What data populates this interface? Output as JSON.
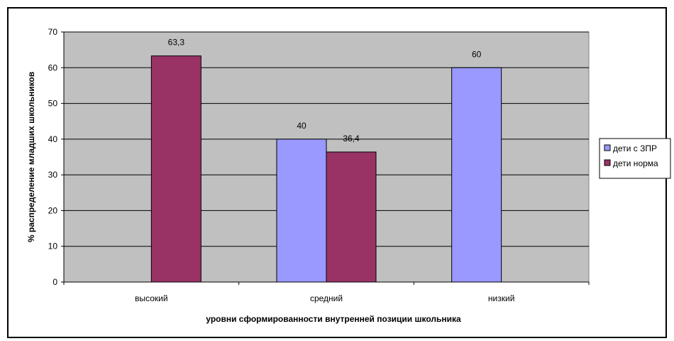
{
  "chart_data": {
    "type": "bar",
    "title": "",
    "xlabel": "уровни сформированности внутренней позиции школьника",
    "ylabel": "% распределение младших школьников",
    "categories": [
      "высокий",
      "средний",
      "низкий"
    ],
    "ylim": [
      0,
      70
    ],
    "yticks": [
      0,
      10,
      20,
      30,
      40,
      50,
      60,
      70
    ],
    "grid": true,
    "legend_position": "right",
    "series": [
      {
        "name": "дети с ЗПР",
        "values": [
          null,
          40,
          60
        ],
        "labels": [
          "",
          "40",
          "60"
        ],
        "color": "#9999ff"
      },
      {
        "name": "дети норма",
        "values": [
          63.3,
          36.4,
          null
        ],
        "labels": [
          "63,3",
          "36,4",
          ""
        ],
        "color": "#993366"
      }
    ],
    "plot_background": "#c0c0c0"
  }
}
